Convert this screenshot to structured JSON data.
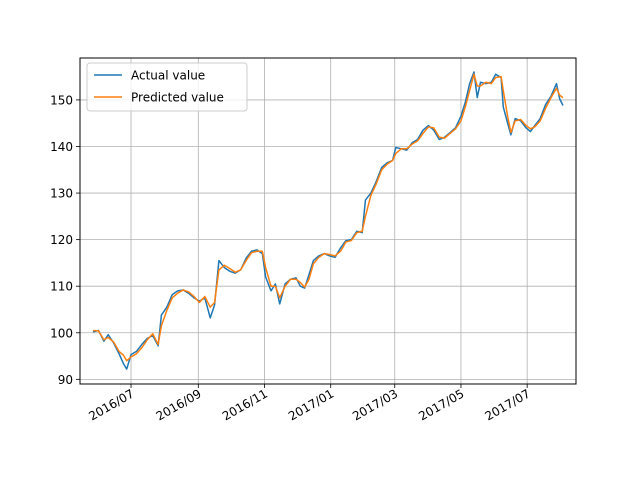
{
  "chart_data": {
    "type": "line",
    "title": "",
    "xlabel": "",
    "ylabel": "",
    "x_axis": {
      "type": "date",
      "range": [
        "2016-05-15",
        "2017-08-15"
      ],
      "tick_labels": [
        "2016/07",
        "2016/09",
        "2016/11",
        "2017/01",
        "2017/03",
        "2017/05",
        "2017/07"
      ],
      "tick_dates": [
        "2016-07-01",
        "2016-09-01",
        "2016-11-01",
        "2017-01-01",
        "2017-03-01",
        "2017-05-01",
        "2017-07-01"
      ]
    },
    "y_axis": {
      "range": [
        89,
        159
      ],
      "ticks": [
        90,
        100,
        110,
        120,
        130,
        140,
        150
      ]
    },
    "grid": true,
    "legend": {
      "position": "upper-left"
    },
    "colors": {
      "actual": "#1f77b4",
      "predicted": "#ff7f0e"
    },
    "series": [
      {
        "name": "Actual value",
        "points": [
          [
            "2016-05-27",
            100.2
          ],
          [
            "2016-06-01",
            100.5
          ],
          [
            "2016-06-06",
            98.2
          ],
          [
            "2016-06-10",
            99.6
          ],
          [
            "2016-06-15",
            97.8
          ],
          [
            "2016-06-20",
            95.5
          ],
          [
            "2016-06-24",
            93.4
          ],
          [
            "2016-06-27",
            92.2
          ],
          [
            "2016-07-01",
            95.3
          ],
          [
            "2016-07-06",
            96.0
          ],
          [
            "2016-07-11",
            97.5
          ],
          [
            "2016-07-16",
            98.8
          ],
          [
            "2016-07-21",
            99.4
          ],
          [
            "2016-07-26",
            97.2
          ],
          [
            "2016-07-29",
            103.8
          ],
          [
            "2016-08-03",
            105.5
          ],
          [
            "2016-08-08",
            108.2
          ],
          [
            "2016-08-13",
            109.0
          ],
          [
            "2016-08-18",
            109.2
          ],
          [
            "2016-08-23",
            108.5
          ],
          [
            "2016-08-28",
            107.5
          ],
          [
            "2016-09-02",
            106.8
          ],
          [
            "2016-09-07",
            107.5
          ],
          [
            "2016-09-12",
            103.2
          ],
          [
            "2016-09-16",
            106.0
          ],
          [
            "2016-09-20",
            115.5
          ],
          [
            "2016-09-25",
            114.0
          ],
          [
            "2016-09-30",
            113.2
          ],
          [
            "2016-10-05",
            112.8
          ],
          [
            "2016-10-10",
            113.5
          ],
          [
            "2016-10-15",
            116.0
          ],
          [
            "2016-10-20",
            117.5
          ],
          [
            "2016-10-25",
            117.8
          ],
          [
            "2016-10-30",
            117.0
          ],
          [
            "2016-11-02",
            112.0
          ],
          [
            "2016-11-07",
            109.0
          ],
          [
            "2016-11-11",
            110.5
          ],
          [
            "2016-11-15",
            106.2
          ],
          [
            "2016-11-20",
            110.5
          ],
          [
            "2016-11-25",
            111.5
          ],
          [
            "2016-11-30",
            111.8
          ],
          [
            "2016-12-04",
            110.0
          ],
          [
            "2016-12-08",
            109.6
          ],
          [
            "2016-12-12",
            112.5
          ],
          [
            "2016-12-16",
            115.5
          ],
          [
            "2016-12-21",
            116.5
          ],
          [
            "2016-12-26",
            117.0
          ],
          [
            "2016-12-31",
            116.5
          ],
          [
            "2017-01-05",
            116.2
          ],
          [
            "2017-01-10",
            118.2
          ],
          [
            "2017-01-15",
            119.8
          ],
          [
            "2017-01-20",
            120.0
          ],
          [
            "2017-01-25",
            121.8
          ],
          [
            "2017-01-30",
            121.5
          ],
          [
            "2017-02-02",
            128.5
          ],
          [
            "2017-02-07",
            130.0
          ],
          [
            "2017-02-12",
            132.5
          ],
          [
            "2017-02-17",
            135.5
          ],
          [
            "2017-02-22",
            136.5
          ],
          [
            "2017-02-27",
            137.0
          ],
          [
            "2017-03-02",
            139.8
          ],
          [
            "2017-03-07",
            139.5
          ],
          [
            "2017-03-12",
            139.2
          ],
          [
            "2017-03-17",
            140.8
          ],
          [
            "2017-03-22",
            141.5
          ],
          [
            "2017-03-27",
            143.5
          ],
          [
            "2017-04-01",
            144.5
          ],
          [
            "2017-04-06",
            143.5
          ],
          [
            "2017-04-11",
            141.5
          ],
          [
            "2017-04-16",
            142.0
          ],
          [
            "2017-04-21",
            143.0
          ],
          [
            "2017-04-26",
            144.0
          ],
          [
            "2017-05-01",
            146.5
          ],
          [
            "2017-05-05",
            149.5
          ],
          [
            "2017-05-09",
            153.5
          ],
          [
            "2017-05-13",
            156.0
          ],
          [
            "2017-05-16",
            150.5
          ],
          [
            "2017-05-19",
            153.8
          ],
          [
            "2017-05-24",
            153.5
          ],
          [
            "2017-05-29",
            153.8
          ],
          [
            "2017-06-02",
            155.5
          ],
          [
            "2017-06-07",
            154.8
          ],
          [
            "2017-06-09",
            148.5
          ],
          [
            "2017-06-13",
            145.0
          ],
          [
            "2017-06-16",
            142.5
          ],
          [
            "2017-06-20",
            146.0
          ],
          [
            "2017-06-25",
            145.5
          ],
          [
            "2017-06-30",
            144.0
          ],
          [
            "2017-07-04",
            143.2
          ],
          [
            "2017-07-08",
            144.5
          ],
          [
            "2017-07-13",
            146.0
          ],
          [
            "2017-07-18",
            149.0
          ],
          [
            "2017-07-23",
            150.8
          ],
          [
            "2017-07-28",
            153.5
          ],
          [
            "2017-07-31",
            150.2
          ],
          [
            "2017-08-03",
            148.8
          ]
        ]
      },
      {
        "name": "Predicted value",
        "points": [
          [
            "2016-05-27",
            100.5
          ],
          [
            "2016-06-01",
            100.4
          ],
          [
            "2016-06-06",
            98.5
          ],
          [
            "2016-06-10",
            99.0
          ],
          [
            "2016-06-15",
            98.0
          ],
          [
            "2016-06-20",
            96.0
          ],
          [
            "2016-06-24",
            95.2
          ],
          [
            "2016-06-27",
            94.0
          ],
          [
            "2016-07-01",
            94.8
          ],
          [
            "2016-07-06",
            95.5
          ],
          [
            "2016-07-11",
            96.8
          ],
          [
            "2016-07-16",
            98.5
          ],
          [
            "2016-07-21",
            99.8
          ],
          [
            "2016-07-26",
            97.5
          ],
          [
            "2016-07-29",
            101.5
          ],
          [
            "2016-08-03",
            104.8
          ],
          [
            "2016-08-08",
            107.5
          ],
          [
            "2016-08-13",
            108.5
          ],
          [
            "2016-08-18",
            109.2
          ],
          [
            "2016-08-23",
            108.8
          ],
          [
            "2016-08-28",
            107.8
          ],
          [
            "2016-09-02",
            106.5
          ],
          [
            "2016-09-07",
            107.8
          ],
          [
            "2016-09-12",
            105.5
          ],
          [
            "2016-09-16",
            106.5
          ],
          [
            "2016-09-20",
            113.5
          ],
          [
            "2016-09-25",
            114.5
          ],
          [
            "2016-09-30",
            113.8
          ],
          [
            "2016-10-05",
            113.0
          ],
          [
            "2016-10-10",
            113.5
          ],
          [
            "2016-10-15",
            115.5
          ],
          [
            "2016-10-20",
            117.2
          ],
          [
            "2016-10-25",
            117.5
          ],
          [
            "2016-10-30",
            117.5
          ],
          [
            "2016-11-02",
            114.0
          ],
          [
            "2016-11-07",
            110.0
          ],
          [
            "2016-11-11",
            110.0
          ],
          [
            "2016-11-15",
            107.5
          ],
          [
            "2016-11-20",
            110.0
          ],
          [
            "2016-11-25",
            111.5
          ],
          [
            "2016-11-30",
            111.5
          ],
          [
            "2016-12-04",
            110.8
          ],
          [
            "2016-12-08",
            109.8
          ],
          [
            "2016-12-12",
            111.5
          ],
          [
            "2016-12-16",
            114.8
          ],
          [
            "2016-12-21",
            116.2
          ],
          [
            "2016-12-26",
            117.0
          ],
          [
            "2016-12-31",
            116.8
          ],
          [
            "2017-01-05",
            116.5
          ],
          [
            "2017-01-10",
            117.5
          ],
          [
            "2017-01-15",
            119.5
          ],
          [
            "2017-01-20",
            119.8
          ],
          [
            "2017-01-25",
            121.5
          ],
          [
            "2017-01-30",
            121.8
          ],
          [
            "2017-02-02",
            125.0
          ],
          [
            "2017-02-07",
            129.5
          ],
          [
            "2017-02-12",
            132.0
          ],
          [
            "2017-02-17",
            135.0
          ],
          [
            "2017-02-22",
            136.2
          ],
          [
            "2017-02-27",
            137.0
          ],
          [
            "2017-03-02",
            138.5
          ],
          [
            "2017-03-07",
            139.5
          ],
          [
            "2017-03-12",
            139.5
          ],
          [
            "2017-03-17",
            140.5
          ],
          [
            "2017-03-22",
            141.2
          ],
          [
            "2017-03-27",
            142.8
          ],
          [
            "2017-04-01",
            144.2
          ],
          [
            "2017-04-06",
            144.0
          ],
          [
            "2017-04-11",
            142.0
          ],
          [
            "2017-04-16",
            141.8
          ],
          [
            "2017-04-21",
            142.8
          ],
          [
            "2017-04-26",
            143.8
          ],
          [
            "2017-05-01",
            145.5
          ],
          [
            "2017-05-05",
            148.5
          ],
          [
            "2017-05-09",
            152.0
          ],
          [
            "2017-05-13",
            155.5
          ],
          [
            "2017-05-16",
            153.0
          ],
          [
            "2017-05-19",
            153.0
          ],
          [
            "2017-05-24",
            153.8
          ],
          [
            "2017-05-29",
            153.5
          ],
          [
            "2017-06-02",
            154.8
          ],
          [
            "2017-06-07",
            155.0
          ],
          [
            "2017-06-09",
            152.0
          ],
          [
            "2017-06-13",
            146.5
          ],
          [
            "2017-06-16",
            143.0
          ],
          [
            "2017-06-20",
            145.5
          ],
          [
            "2017-06-25",
            145.8
          ],
          [
            "2017-06-30",
            144.5
          ],
          [
            "2017-07-04",
            143.8
          ],
          [
            "2017-07-08",
            144.2
          ],
          [
            "2017-07-13",
            145.5
          ],
          [
            "2017-07-18",
            148.2
          ],
          [
            "2017-07-23",
            150.5
          ],
          [
            "2017-07-28",
            152.5
          ],
          [
            "2017-07-31",
            151.0
          ],
          [
            "2017-08-03",
            150.5
          ]
        ]
      }
    ]
  }
}
